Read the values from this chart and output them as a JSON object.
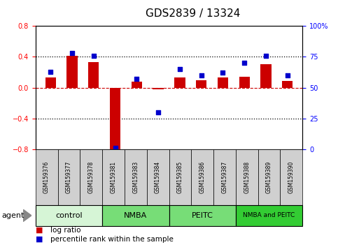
{
  "title": "GDS2839 / 13324",
  "samples": [
    "GSM159376",
    "GSM159377",
    "GSM159378",
    "GSM159381",
    "GSM159383",
    "GSM159384",
    "GSM159385",
    "GSM159386",
    "GSM159387",
    "GSM159388",
    "GSM159389",
    "GSM159390"
  ],
  "log_ratio": [
    0.13,
    0.41,
    0.33,
    -0.82,
    0.08,
    -0.02,
    0.13,
    0.1,
    0.13,
    0.14,
    0.3,
    0.09
  ],
  "percentile_rank": [
    63,
    78,
    76,
    1,
    57,
    30,
    65,
    60,
    62,
    70,
    76,
    60
  ],
  "ylim_left": [
    -0.8,
    0.8
  ],
  "ylim_right": [
    0,
    100
  ],
  "yticks_left": [
    -0.8,
    -0.4,
    0,
    0.4,
    0.8
  ],
  "yticks_right": [
    0,
    25,
    50,
    75,
    100
  ],
  "bar_color": "#cc0000",
  "dot_color": "#0000cc",
  "dashed_line_color": "#cc0000",
  "dotted_line_color": "#000000",
  "groups": [
    {
      "label": "control",
      "start": 0,
      "end": 3,
      "color": "#d6f5d6"
    },
    {
      "label": "NMBA",
      "start": 3,
      "end": 6,
      "color": "#77dd77"
    },
    {
      "label": "PEITC",
      "start": 6,
      "end": 9,
      "color": "#77dd77"
    },
    {
      "label": "NMBA and PEITC",
      "start": 9,
      "end": 12,
      "color": "#33cc33"
    }
  ],
  "sample_box_color": "#d0d0d0",
  "agent_label": "agent",
  "legend_items": [
    {
      "color": "#cc0000",
      "label": "log ratio"
    },
    {
      "color": "#0000cc",
      "label": "percentile rank within the sample"
    }
  ],
  "title_fontsize": 11,
  "tick_fontsize": 7,
  "sample_fontsize": 5.5,
  "group_fontsize": 8,
  "legend_fontsize": 7.5,
  "agent_fontsize": 8,
  "bar_width": 0.5
}
